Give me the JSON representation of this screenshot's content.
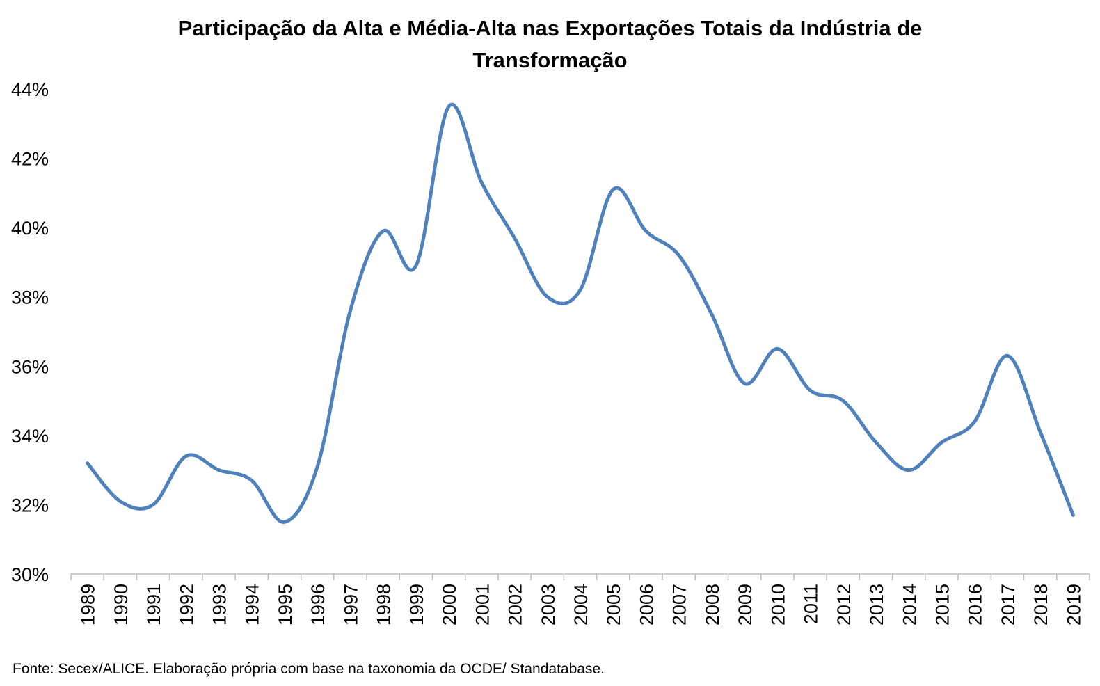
{
  "chart_data": {
    "type": "line",
    "title_lines": [
      "Participação da Alta e Média-Alta nas Exportações Totais da Indústria de",
      "Transformação"
    ],
    "xlabel": "",
    "ylabel": "",
    "categories": [
      "1989",
      "1990",
      "1991",
      "1992",
      "1993",
      "1994",
      "1995",
      "1996",
      "1997",
      "1998",
      "1999",
      "2000",
      "2001",
      "2002",
      "2003",
      "2004",
      "2005",
      "2006",
      "2007",
      "2008",
      "2009",
      "2010",
      "2011",
      "2012",
      "2013",
      "2014",
      "2015",
      "2016",
      "2017",
      "2018",
      "2019"
    ],
    "series": [
      {
        "values": [
          33.2,
          32.1,
          32.0,
          33.4,
          33.0,
          32.7,
          31.5,
          33.1,
          37.6,
          39.9,
          38.9,
          43.5,
          41.3,
          39.7,
          38.0,
          38.2,
          41.1,
          39.9,
          39.2,
          37.5,
          35.5,
          36.5,
          35.3,
          35.0,
          33.8,
          33.0,
          33.8,
          34.4,
          36.3,
          34.1,
          31.7
        ],
        "color": "#4F81BD"
      }
    ],
    "ylim": [
      30,
      44
    ],
    "yticks": [
      30,
      32,
      34,
      36,
      38,
      40,
      42,
      44
    ],
    "ytick_labels": [
      "30%",
      "32%",
      "34%",
      "36%",
      "38%",
      "40%",
      "42%",
      "44%"
    ],
    "grid": false,
    "legend": "none",
    "smooth": true
  },
  "source_note": "Fonte: Secex/ALICE. Elaboração própria com base na taxonomia da OCDE/ Standatabase."
}
